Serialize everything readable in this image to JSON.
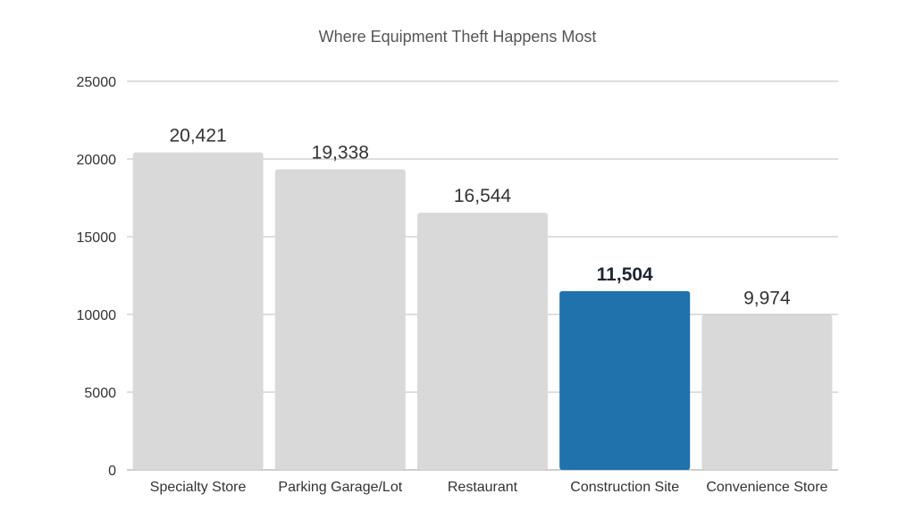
{
  "chart_data": {
    "type": "bar",
    "title": "Where Equipment Theft Happens Most",
    "xlabel": "",
    "ylabel": "",
    "categories": [
      "Specialty Store",
      "Parking Garage/Lot",
      "Restaurant",
      "Construction Site",
      "Convenience Store"
    ],
    "values": [
      20421,
      19338,
      16544,
      11504,
      9974
    ],
    "data_labels": [
      "20,421",
      "19,338",
      "16,544",
      "11,504",
      "9,974"
    ],
    "highlight_index": 3,
    "ylim": [
      0,
      25000
    ],
    "yticks": [
      0,
      5000,
      10000,
      15000,
      20000,
      25000
    ],
    "ytick_labels": [
      "0",
      "5000",
      "10000",
      "15000",
      "20000",
      "25000"
    ],
    "grid": true,
    "legend": "none",
    "colors": {
      "bar": "#d9d9d9",
      "highlight": "#1f72ab",
      "grid": "#bdbdbd",
      "text": "#333333",
      "title": "#555555",
      "highlight_label": "#1c2533"
    }
  }
}
